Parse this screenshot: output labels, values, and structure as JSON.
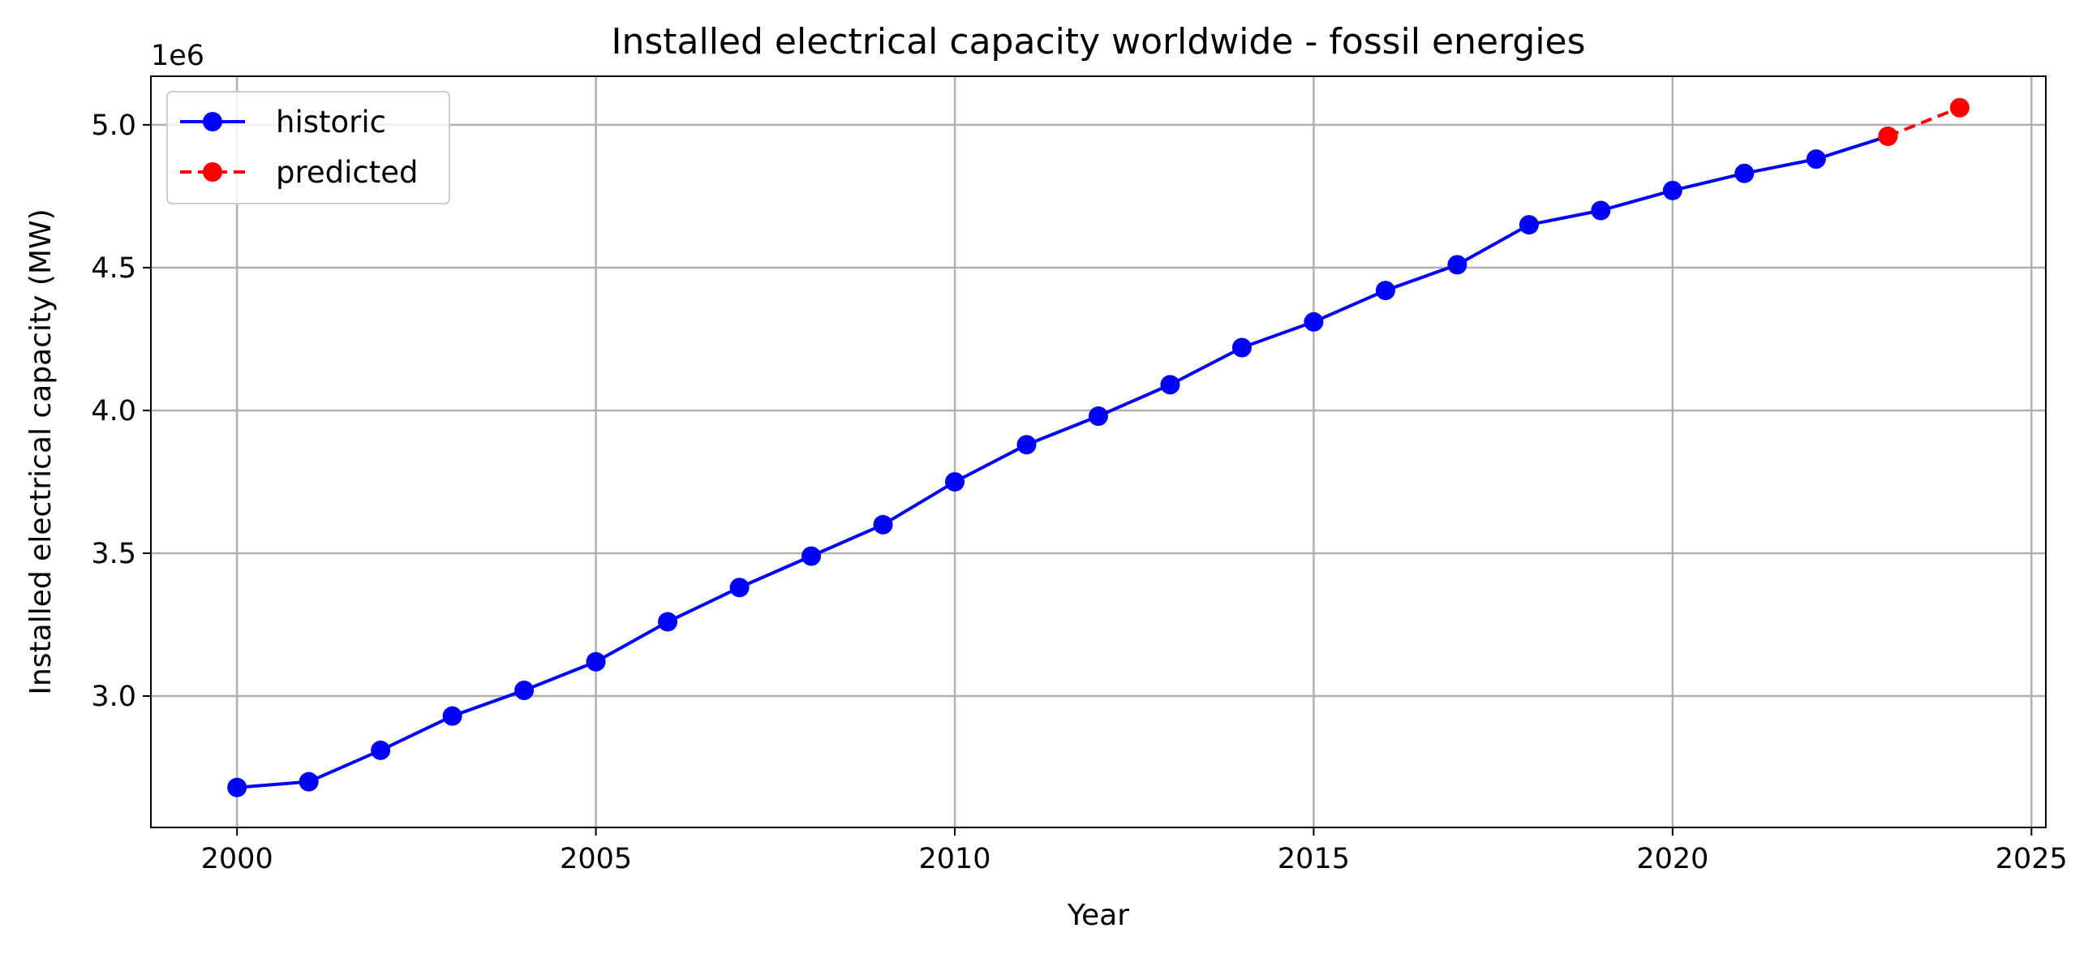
{
  "chart_data": {
    "type": "line",
    "title": "Installed electrical capacity worldwide - fossil energies",
    "xlabel": "Year",
    "ylabel": "Installed electrical capacity (MW)",
    "y_offset_label": "1e6",
    "xlim": [
      1998.8,
      2025.2
    ],
    "ylim": [
      2.54,
      5.17
    ],
    "x_ticks": [
      2000,
      2005,
      2010,
      2015,
      2020,
      2025
    ],
    "y_ticks": [
      3.0,
      3.5,
      4.0,
      4.5,
      5.0
    ],
    "x_tick_labels": [
      "2000",
      "2005",
      "2010",
      "2015",
      "2020",
      "2025"
    ],
    "y_tick_labels": [
      "3.0",
      "3.5",
      "4.0",
      "4.5",
      "5.0"
    ],
    "grid": true,
    "legend_position": "top-left",
    "series": [
      {
        "name": "historic",
        "color": "#0000ff",
        "line_style": "solid",
        "marker": "circle",
        "x": [
          2000,
          2001,
          2002,
          2003,
          2004,
          2005,
          2006,
          2007,
          2008,
          2009,
          2010,
          2011,
          2012,
          2013,
          2014,
          2015,
          2016,
          2017,
          2018,
          2019,
          2020,
          2021,
          2022,
          2023
        ],
        "y": [
          2.68,
          2.7,
          2.81,
          2.93,
          3.02,
          3.12,
          3.26,
          3.38,
          3.49,
          3.6,
          3.75,
          3.88,
          3.98,
          4.09,
          4.22,
          4.31,
          4.42,
          4.51,
          4.65,
          4.7,
          4.77,
          4.83,
          4.88,
          4.96
        ]
      },
      {
        "name": "predicted",
        "color": "#ff0000",
        "line_style": "dashed",
        "marker": "circle",
        "x": [
          2023,
          2024
        ],
        "y": [
          4.96,
          5.06
        ]
      }
    ]
  }
}
